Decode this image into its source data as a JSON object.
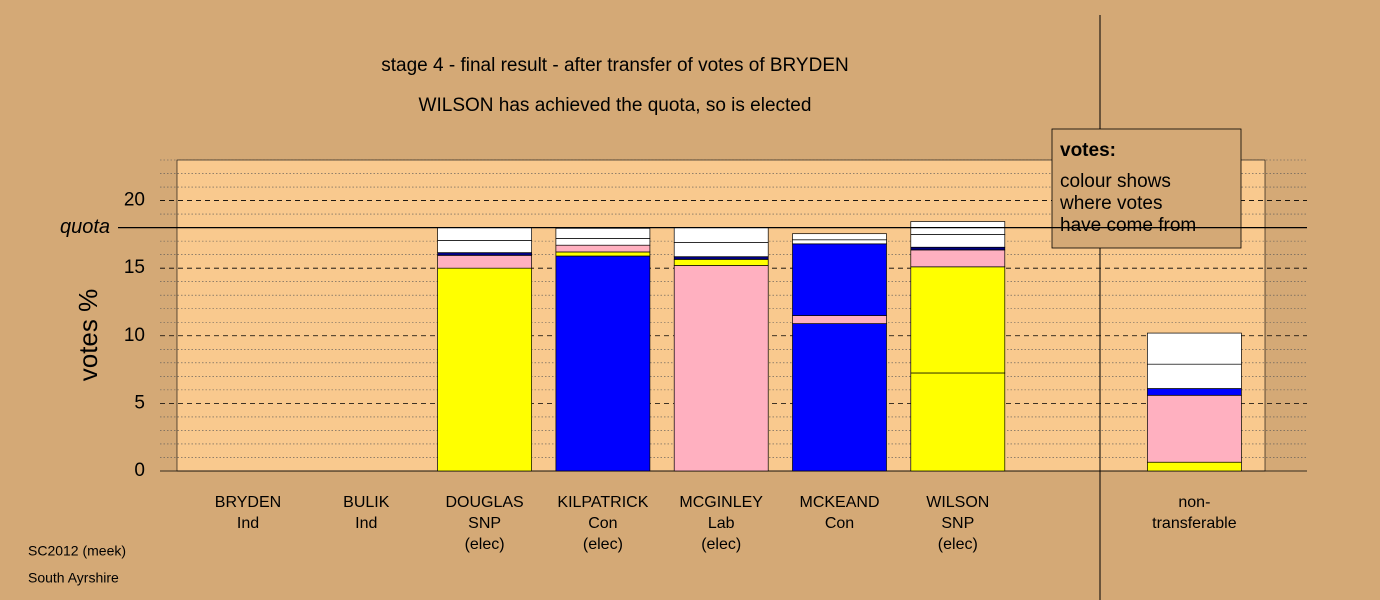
{
  "chart_data": {
    "type": "stacked-bar",
    "title": "stage 4 - final result - after transfer of votes of BRYDEN",
    "subtitle": "WILSON has achieved the quota, so is elected",
    "y_label": "votes %",
    "ylim": [
      0,
      23
    ],
    "yticks": [
      0,
      5,
      10,
      15,
      20
    ],
    "minor_yticks": [
      1,
      2,
      3,
      4,
      6,
      7,
      8,
      9,
      11,
      12,
      13,
      14,
      16,
      17,
      18,
      19,
      21,
      22,
      23
    ],
    "quota": {
      "value": 18,
      "label": "quota"
    },
    "categories": [
      [
        "BRYDEN",
        "Ind"
      ],
      [
        "BULIK",
        "Ind"
      ],
      [
        "DOUGLAS",
        "SNP",
        "(elec)"
      ],
      [
        "KILPATRICK",
        "Con",
        "(elec)"
      ],
      [
        "MCGINLEY",
        "Lab",
        "(elec)"
      ],
      [
        "MCKEAND",
        "Con"
      ],
      [
        "WILSON",
        "SNP",
        "(elec)"
      ],
      [
        "non-",
        "transferable"
      ]
    ],
    "stacks": [
      {
        "segments": []
      },
      {
        "segments": []
      },
      {
        "segments": [
          {
            "color": "#ffff00",
            "value": 15.0
          },
          {
            "color": "#ffb0c0",
            "value": 0.95
          },
          {
            "color": "#000080",
            "value": 0.2
          },
          {
            "color": "#ffffff",
            "value": 0.9
          },
          {
            "color": "#ffffff",
            "value": 0.95
          }
        ]
      },
      {
        "segments": [
          {
            "color": "#0000ff",
            "value": 15.9
          },
          {
            "color": "#ffff00",
            "value": 0.3
          },
          {
            "color": "#ffb0c0",
            "value": 0.5
          },
          {
            "color": "#ffffff",
            "value": 0.5
          },
          {
            "color": "#ffffff",
            "value": 0.75
          }
        ]
      },
      {
        "segments": [
          {
            "color": "#ffb0c0",
            "value": 15.2
          },
          {
            "color": "#ffff00",
            "value": 0.45
          },
          {
            "color": "#000080",
            "value": 0.2
          },
          {
            "color": "#ffffff",
            "value": 1.05
          },
          {
            "color": "#ffffff",
            "value": 1.1
          }
        ]
      },
      {
        "segments": [
          {
            "color": "#0000ff",
            "value": 10.9
          },
          {
            "color": "#ffb0c0",
            "value": 0.6
          },
          {
            "color": "#0000ff",
            "value": 5.3
          },
          {
            "color": "#ffffff",
            "value": 0.3
          },
          {
            "color": "#ffffff",
            "value": 0.45
          }
        ]
      },
      {
        "segments": [
          {
            "color": "#ffff00",
            "value": 7.25
          },
          {
            "color": "#ffff00",
            "value": 7.85
          },
          {
            "color": "#ffb0c0",
            "value": 1.25
          },
          {
            "color": "#000080",
            "value": 0.2
          },
          {
            "color": "#ffffff",
            "value": 0.95
          },
          {
            "color": "#ffffff",
            "value": 0.95
          }
        ]
      },
      {
        "segments": [
          {
            "color": "#ffff00",
            "value": 0.65
          },
          {
            "color": "#ffb0c0",
            "value": 4.95
          },
          {
            "color": "#0000ff",
            "value": 0.5
          },
          {
            "color": "#ffffff",
            "value": 1.8
          },
          {
            "color": "#ffffff",
            "value": 2.3
          }
        ]
      }
    ],
    "legend": {
      "title": "votes:",
      "lines": [
        "colour shows",
        "where votes",
        "have come from"
      ]
    },
    "footer": [
      "SC2012 (meek)",
      "South Ayrshire"
    ]
  }
}
